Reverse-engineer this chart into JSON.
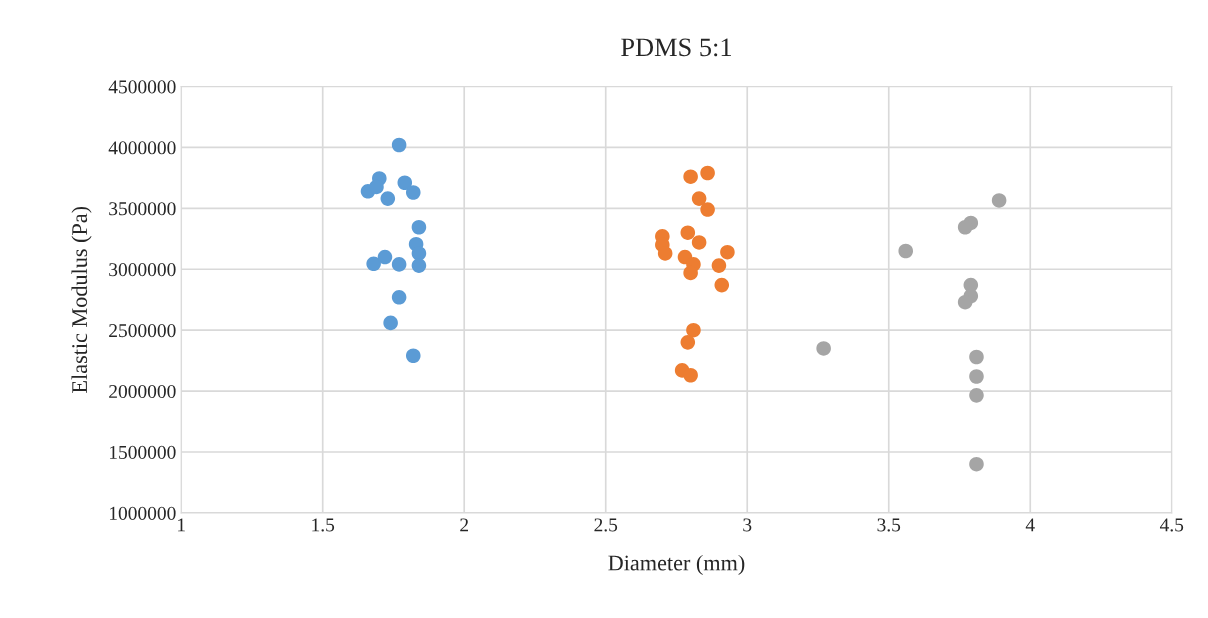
{
  "chart_data": {
    "type": "scatter",
    "title": "PDMS 5:1",
    "xlabel": "Diameter (mm)",
    "ylabel": "Elastic Modulus (Pa)",
    "xlim": [
      1,
      4.5
    ],
    "xticks": [
      1,
      1.5,
      2,
      2.5,
      3,
      3.5,
      4,
      4.5
    ],
    "ylim": [
      1000000,
      4500000
    ],
    "yticks": [
      1000000,
      1500000,
      2000000,
      2500000,
      3000000,
      3500000,
      4000000,
      4500000
    ],
    "grid": true,
    "marker": "circle",
    "series": [
      {
        "color": "#5b9bd5",
        "x": [
          1.77,
          1.7,
          1.66,
          1.69,
          1.73,
          1.79,
          1.82,
          1.84,
          1.83,
          1.84,
          1.84,
          1.68,
          1.72,
          1.77,
          1.77,
          1.74,
          1.82
        ],
        "values": [
          4020000,
          3745000,
          3640000,
          3676000,
          3580000,
          3710000,
          3630000,
          3345000,
          3206000,
          3130000,
          3030000,
          3045000,
          3100000,
          3040000,
          2770000,
          2560000,
          2290000
        ]
      },
      {
        "color": "#ed7d31",
        "x": [
          2.86,
          2.8,
          2.83,
          2.86,
          2.7,
          2.7,
          2.71,
          2.79,
          2.83,
          2.93,
          2.78,
          2.81,
          2.8,
          2.9,
          2.91,
          2.81,
          2.79,
          2.77,
          2.8
        ],
        "values": [
          3790000,
          3760000,
          3580000,
          3490000,
          3270000,
          3200000,
          3130000,
          3300000,
          3220000,
          3140000,
          3100000,
          3040000,
          2970000,
          3030000,
          2870000,
          2500000,
          2400000,
          2170000,
          2130000
        ]
      },
      {
        "color": "#a5a5a5",
        "x": [
          3.89,
          3.79,
          3.77,
          3.56,
          3.79,
          3.79,
          3.77,
          3.27,
          3.81,
          3.81,
          3.81,
          3.81
        ],
        "values": [
          3565000,
          3380000,
          3345000,
          3150000,
          2870000,
          2780000,
          2730000,
          2350000,
          2280000,
          2120000,
          1965000,
          1400000
        ]
      }
    ]
  }
}
